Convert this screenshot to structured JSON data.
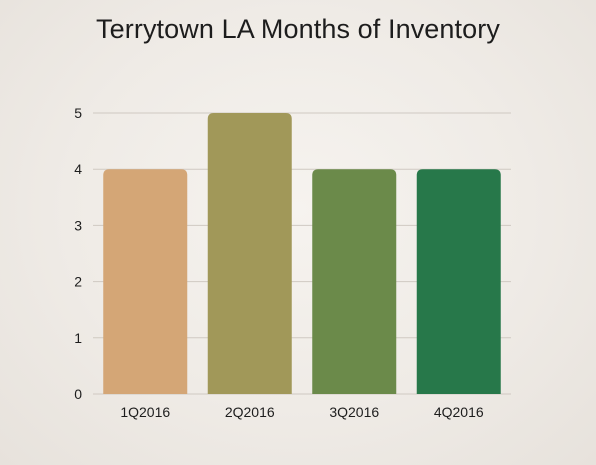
{
  "chart_data": {
    "type": "bar",
    "title": "Terrytown LA Months of Inventory",
    "xlabel": "",
    "ylabel": "",
    "categories": [
      "1Q2016",
      "2Q2016",
      "3Q2016",
      "4Q2016"
    ],
    "values": [
      4,
      5,
      4,
      4
    ],
    "bar_colors": [
      "#d4a676",
      "#a19859",
      "#6b8a4a",
      "#27784a"
    ],
    "ylim": [
      0,
      5
    ],
    "yticks": [
      "0",
      "1",
      "2",
      "3",
      "4",
      "5"
    ],
    "grid": true,
    "legend": "none"
  }
}
